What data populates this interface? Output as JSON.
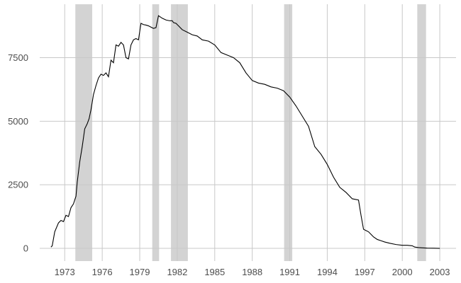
{
  "chart_data": {
    "type": "line",
    "title": "",
    "xlabel": "",
    "ylabel": "",
    "xlim": [
      1971.0,
      2004.3
    ],
    "ylim": [
      -500,
      9600
    ],
    "x_ticks": [
      1973,
      1976,
      1979,
      1982,
      1985,
      1988,
      1991,
      1994,
      1997,
      2000,
      2003
    ],
    "x_tick_labels": [
      "1973",
      "1976",
      "1979",
      "1982",
      "1985",
      "1988",
      "1991",
      "1994",
      "1997",
      "2000",
      "2003"
    ],
    "y_ticks": [
      0,
      2500,
      5000,
      7500
    ],
    "y_tick_labels": [
      "0",
      "2500",
      "5000",
      "7500"
    ],
    "grid": true,
    "legend": "none",
    "shaded_periods": [
      {
        "start": 1973.85,
        "end": 1975.2
      },
      {
        "start": 1980.0,
        "end": 1980.55
      },
      {
        "start": 1981.5,
        "end": 1982.85
      },
      {
        "start": 1990.55,
        "end": 1991.2
      },
      {
        "start": 2001.2,
        "end": 2001.9
      }
    ],
    "colors": {
      "line": "#000000",
      "shading": "#d3d3d3",
      "grid": "#c8c8c8"
    },
    "series": [
      {
        "x": [
          1971.9,
          1972.0,
          1972.2,
          1972.5,
          1972.7,
          1972.9,
          1973.1,
          1973.3,
          1973.5,
          1973.7,
          1973.9,
          1974.0,
          1974.2,
          1974.4,
          1974.6,
          1974.8,
          1974.95,
          1975.1,
          1975.3,
          1975.5,
          1975.7,
          1975.9,
          1976.1,
          1976.3,
          1976.5,
          1976.7,
          1976.9,
          1977.1,
          1977.3,
          1977.5,
          1977.7,
          1977.9,
          1978.1,
          1978.3,
          1978.5,
          1978.7,
          1978.9,
          1979.1,
          1979.3,
          1979.5,
          1979.7,
          1979.9,
          1980.1,
          1980.3,
          1980.5,
          1980.8,
          1981.1,
          1981.4,
          1981.6,
          1981.7,
          1981.9,
          1982.1,
          1982.4,
          1982.8,
          1983.2,
          1983.6,
          1984.0,
          1984.5,
          1985.0,
          1985.5,
          1986.0,
          1986.5,
          1987.0,
          1987.5,
          1988.0,
          1988.5,
          1989.0,
          1989.5,
          1990.0,
          1990.5,
          1991.0,
          1991.5,
          1992.0,
          1992.5,
          1993.0,
          1993.5,
          1994.0,
          1994.5,
          1995.0,
          1995.5,
          1996.0,
          1996.5,
          1996.7,
          1996.9,
          1997.1,
          1997.3,
          1997.5,
          1997.7,
          1998.0,
          1998.3,
          1998.6,
          1999.0,
          1999.5,
          2000.0,
          2000.4,
          2000.8,
          2001.0,
          2001.3,
          2001.6,
          2002.0,
          2002.5,
          2003.0
        ],
        "y": [
          50,
          100,
          650,
          1000,
          1100,
          1050,
          1300,
          1250,
          1600,
          1750,
          2050,
          2600,
          3400,
          4000,
          4700,
          4900,
          5100,
          5450,
          6050,
          6400,
          6700,
          6850,
          6800,
          6900,
          6750,
          7400,
          7300,
          8000,
          7950,
          8100,
          8000,
          7500,
          7450,
          8000,
          8200,
          8250,
          8200,
          8850,
          8800,
          8780,
          8750,
          8700,
          8650,
          8680,
          9150,
          9050,
          8980,
          8950,
          8950,
          8880,
          8850,
          8750,
          8600,
          8500,
          8400,
          8350,
          8200,
          8150,
          8000,
          7700,
          7600,
          7500,
          7300,
          6900,
          6600,
          6500,
          6450,
          6350,
          6300,
          6200,
          5950,
          5600,
          5200,
          4800,
          4000,
          3700,
          3300,
          2800,
          2400,
          2200,
          1950,
          1900,
          1300,
          750,
          700,
          650,
          550,
          450,
          350,
          300,
          250,
          200,
          150,
          120,
          120,
          100,
          50,
          30,
          20,
          10,
          5,
          0
        ]
      }
    ]
  }
}
